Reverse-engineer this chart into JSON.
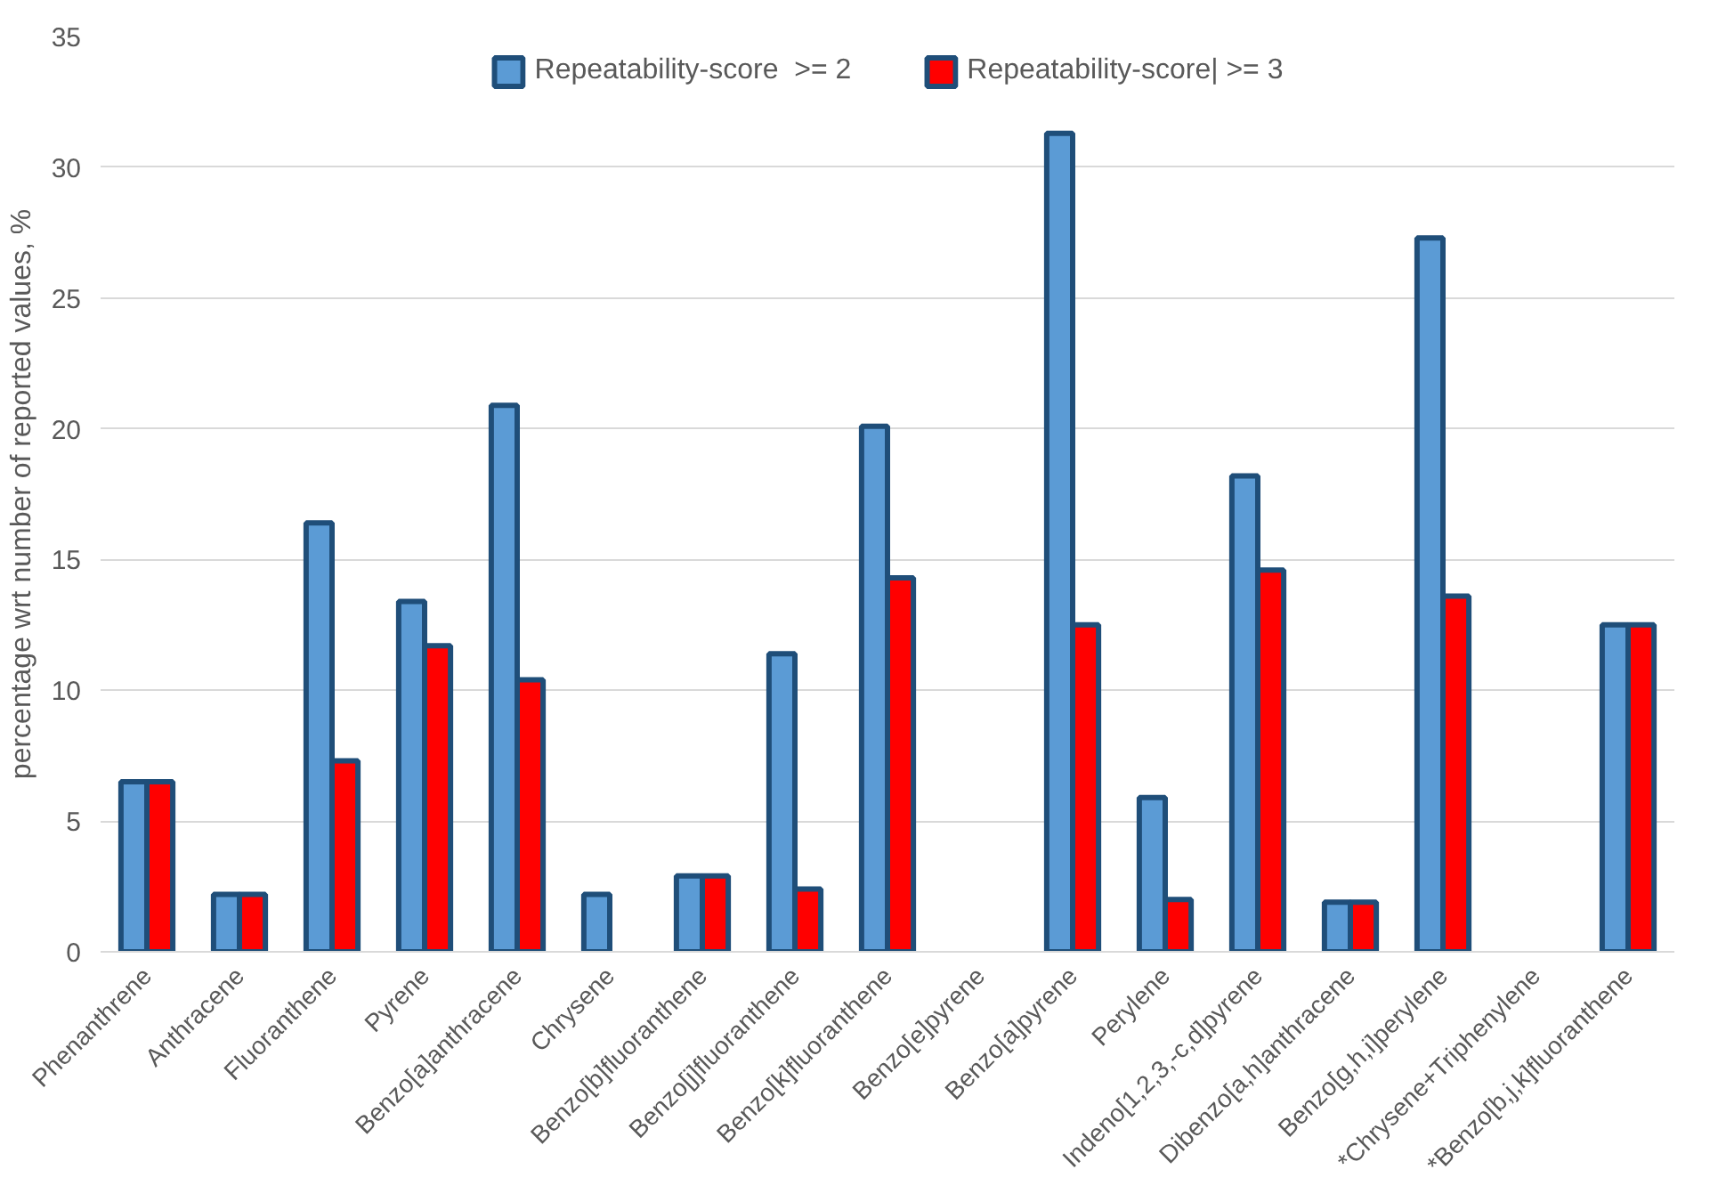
{
  "chart_data": {
    "type": "bar",
    "ylabel": "percentage wrt number of reported values, %",
    "categories": [
      "Phenanthrene",
      "Anthracene",
      "Fluoranthene",
      "Pyrene",
      "Benzo[a]anthracene",
      "Chrysene",
      "Benzo[b]fluoranthene",
      "Benzo[j]fluoranthene",
      "Benzo[k]fluoranthene",
      "Benzo[e]pyrene",
      "Benzo[a]pyrene",
      "Perylene",
      "Indeno[1,2,3,-c,d]pyrene",
      "Dibenzo[a,h]anthracene",
      "Benzo[g,h,i]perylene",
      "*Chrysene+Triphenylene",
      "*Benzo[b,j,k]fluoranthene"
    ],
    "series": [
      {
        "name": "Repeatability-score  >= 2",
        "color": "#5b9bd5",
        "values": [
          6.5,
          2.2,
          16.4,
          13.4,
          20.9,
          2.2,
          2.9,
          11.4,
          20.1,
          null,
          31.3,
          5.9,
          18.2,
          1.9,
          27.3,
          null,
          12.5
        ]
      },
      {
        "name": "Repeatability-score| >= 3",
        "color": "#ff0000",
        "values": [
          6.5,
          2.2,
          7.3,
          11.7,
          10.4,
          null,
          2.9,
          2.4,
          14.3,
          null,
          12.5,
          2.0,
          14.6,
          1.9,
          13.6,
          null,
          12.5
        ]
      }
    ],
    "ylim": [
      0,
      35
    ],
    "yticks": [
      0,
      5,
      10,
      15,
      20,
      25,
      30,
      35
    ],
    "grid": "y",
    "legend": "top"
  }
}
